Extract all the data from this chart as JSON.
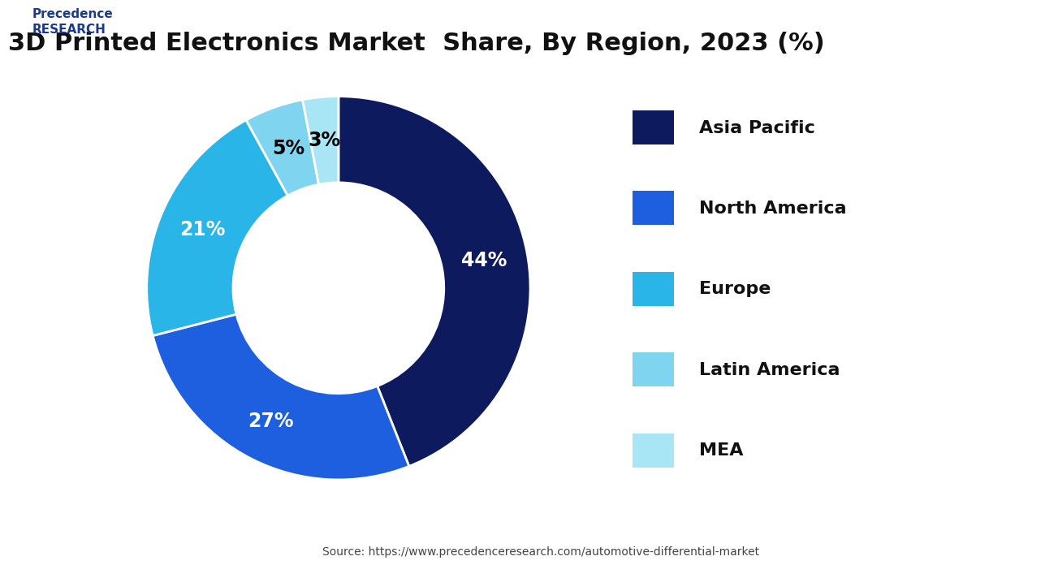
{
  "title": "3D Printed Electronics Market  Share, By Region, 2023 (%)",
  "title_fontsize": 22,
  "segments": [
    {
      "label": "Asia Pacific",
      "value": 44,
      "color": "#0d1b5e",
      "pct_color": "white"
    },
    {
      "label": "North America",
      "value": 27,
      "color": "#1e5fe0",
      "pct_color": "white"
    },
    {
      "label": "Europe",
      "value": 21,
      "color": "#29b5e8",
      "pct_color": "white"
    },
    {
      "label": "Latin America",
      "value": 5,
      "color": "#7fd4f0",
      "pct_color": "black"
    },
    {
      "label": "MEA",
      "value": 3,
      "color": "#a8e6f5",
      "pct_color": "black"
    }
  ],
  "donut_width": 0.45,
  "background_color": "#ffffff",
  "source_text": "Source: https://www.precedenceresearch.com/automotive-differential-market",
  "legend_fontsize": 16,
  "pct_fontsize": 17
}
